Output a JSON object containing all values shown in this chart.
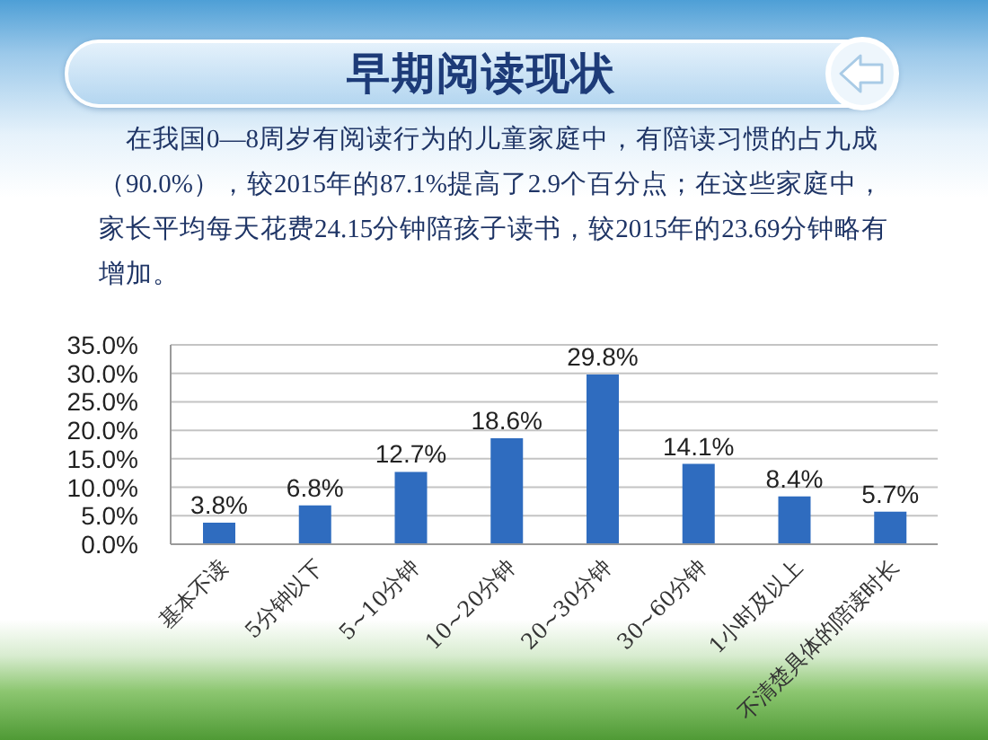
{
  "chart_data": {
    "type": "bar",
    "title": "早期阅读现状",
    "subtitle": "在我国0—8周岁有阅读行为的儿童家庭中，有陪读习惯的占九成（90.0%），较2015年的87.1%提高了2.9个百分点；在这些家庭中，家长平均每天花费24.15分钟陪孩子读书，较2015年的23.69分钟略有增加。",
    "categories": [
      "基本不读",
      "5分钟以下",
      "5~10分钟",
      "10~20分钟",
      "20~30分钟",
      "30~60分钟",
      "1小时及以上",
      "不清楚具体的陪读时长"
    ],
    "values": [
      3.8,
      6.8,
      12.7,
      18.6,
      29.8,
      14.1,
      8.4,
      5.7
    ],
    "value_labels": [
      "3.8%",
      "6.8%",
      "12.7%",
      "18.6%",
      "29.8%",
      "14.1%",
      "8.4%",
      "5.7%"
    ],
    "color": "#2f6cbf",
    "ylim": [
      0,
      35
    ],
    "yticks": [
      {
        "value": 0,
        "label": "0.0%"
      },
      {
        "value": 5,
        "label": "5.0%"
      },
      {
        "value": 10,
        "label": "10.0%"
      },
      {
        "value": 15,
        "label": "15.0%"
      },
      {
        "value": 20,
        "label": "20.0%"
      },
      {
        "value": 25,
        "label": "25.0%"
      },
      {
        "value": 30,
        "label": "30.0%"
      },
      {
        "value": 35,
        "label": "35.0%"
      }
    ],
    "grid": "y"
  }
}
